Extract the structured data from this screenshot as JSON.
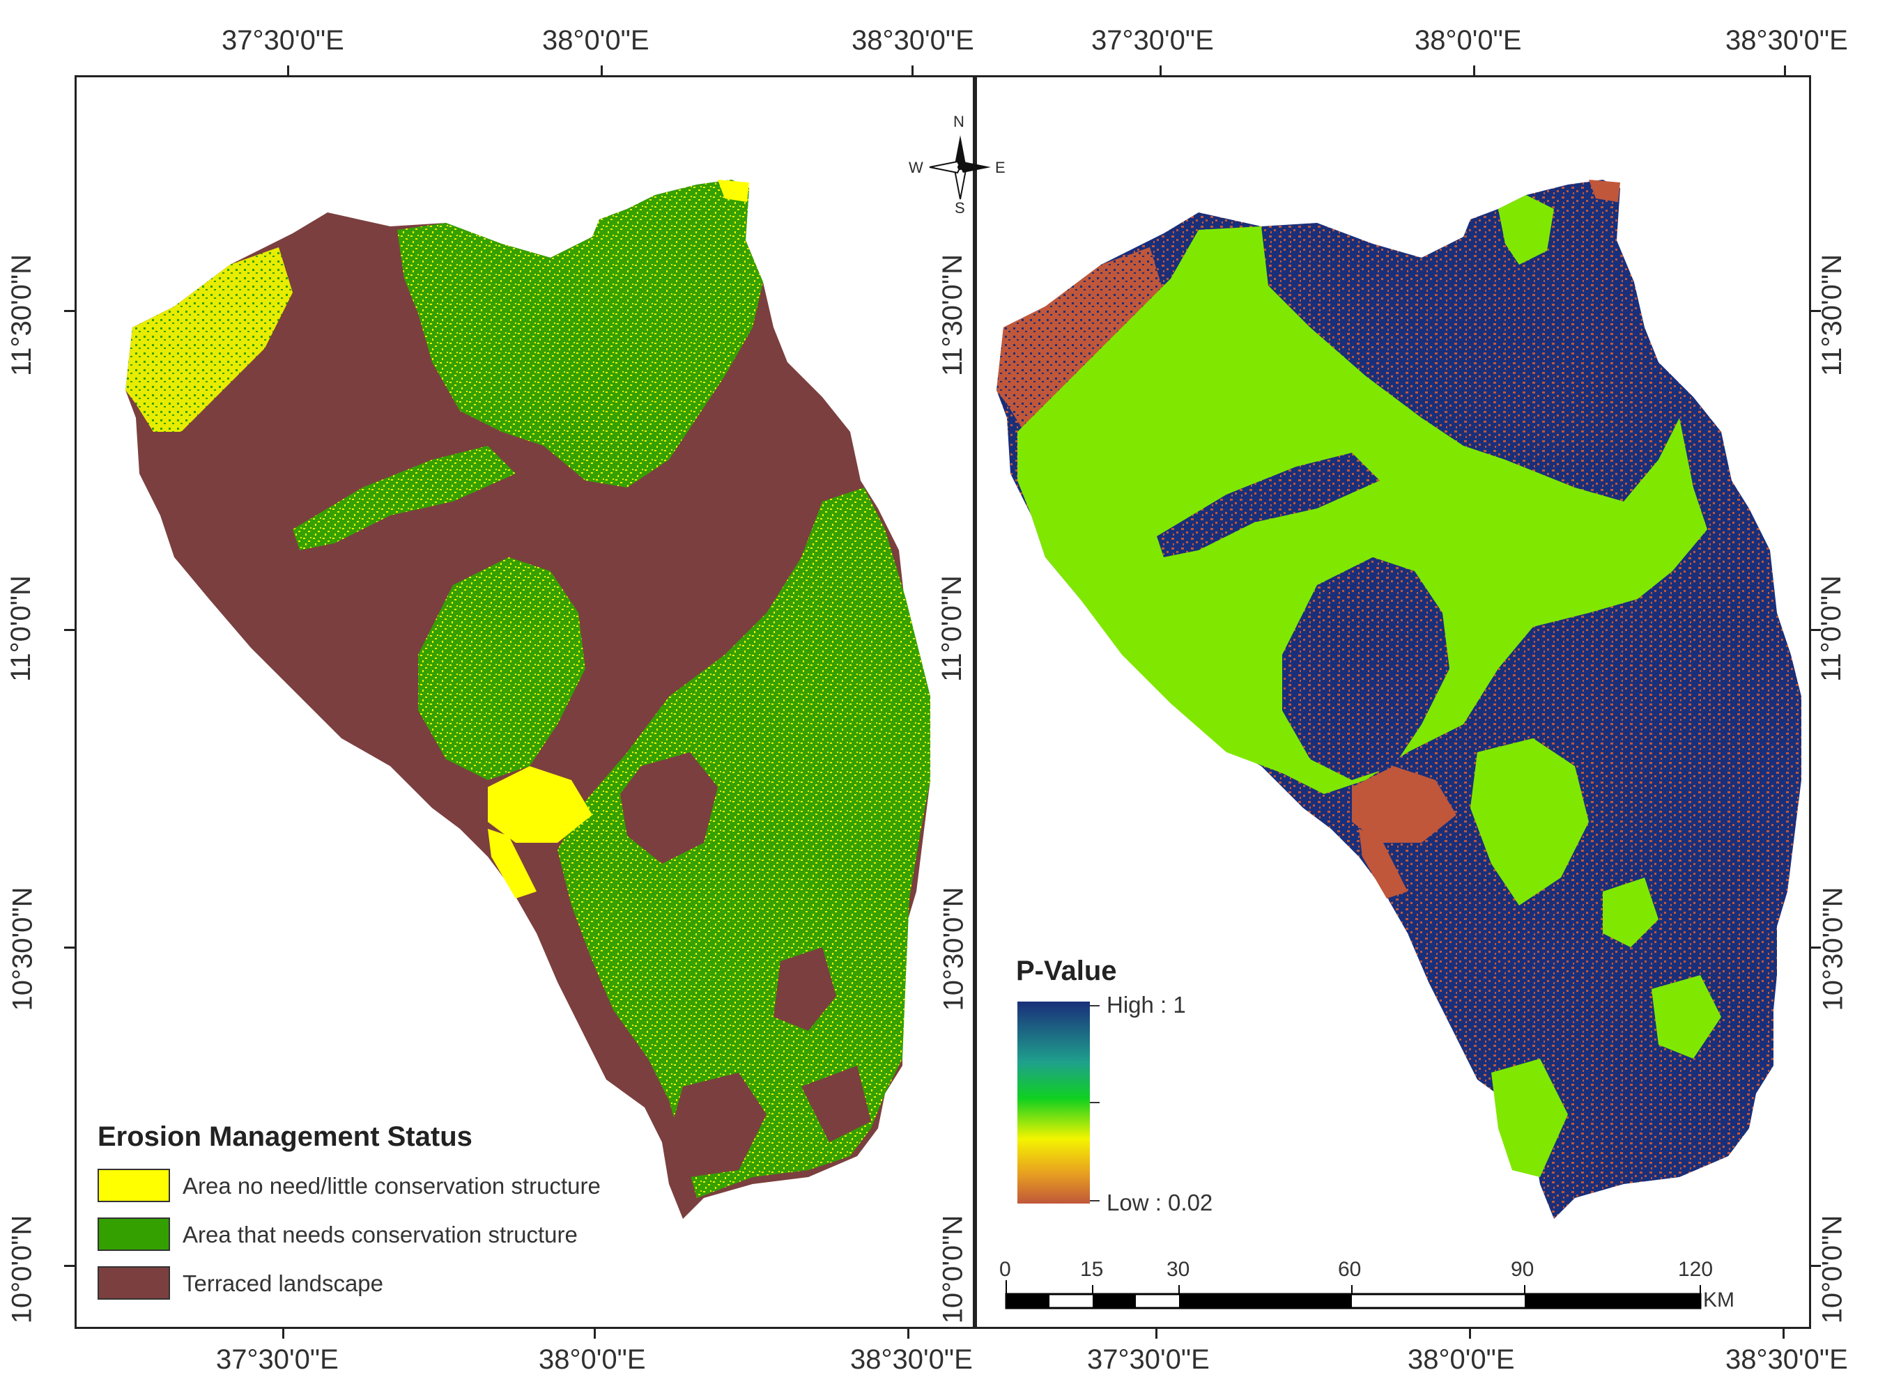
{
  "left_map": {
    "lon_labels": [
      "37°30'0\"E",
      "38°0'0\"E",
      "38°30'0\"E"
    ],
    "lat_labels": [
      "11°30'0\"N",
      "11°0'0\"N",
      "10°30'0\"N",
      "10°0'0\"N"
    ],
    "legend": {
      "title": "Erosion Management  Status",
      "items": [
        {
          "label": "Area no need/little conservation structure",
          "color": "#ffff00"
        },
        {
          "label": "Area that needs conservation structure",
          "color": "#33a000"
        },
        {
          "label": "Terraced landscape",
          "color": "#7b3f3f"
        }
      ]
    }
  },
  "right_map": {
    "lon_labels": [
      "37°30'0\"E",
      "38°0'0\"E",
      "38°30'0\"E"
    ],
    "lat_labels": [
      "11°30'0\"N",
      "11°0'0\"N",
      "10°30'0\"N",
      "10°0'0\"N"
    ],
    "legend": {
      "title": "P-Value",
      "high_label": "High : 1",
      "low_label": "Low : 0.02"
    },
    "scale_bar": {
      "labels": [
        "0",
        "15",
        "30",
        "60",
        "90",
        "120"
      ],
      "unit": "KM"
    },
    "colors": {
      "green": "#80e800",
      "blue": "#1a2f7a",
      "red": "#c0573a"
    }
  },
  "north_arrow": {
    "n": "N",
    "s": "S",
    "e": "E",
    "w": "W"
  }
}
